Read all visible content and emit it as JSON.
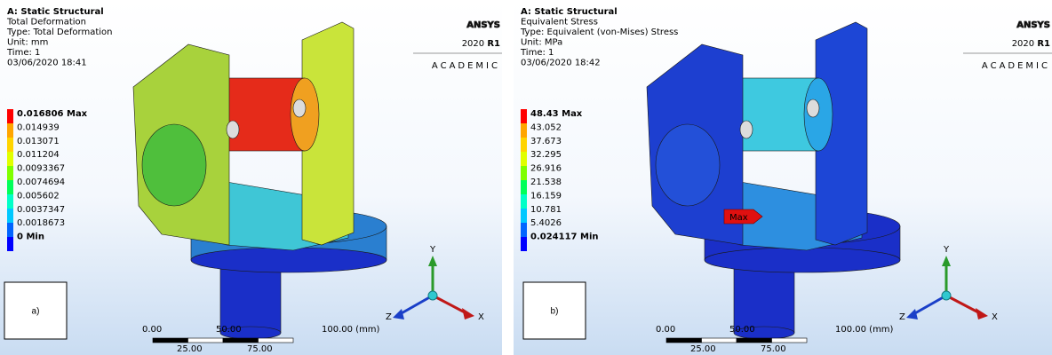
{
  "panels": [
    {
      "label": "a)",
      "header": {
        "analysis": "A: Static Structural",
        "result": "Total Deformation",
        "type": "Type: Total Deformation",
        "unit": "Unit: mm",
        "time": "Time: 1",
        "date": "03/06/2020 18:41"
      },
      "legend": [
        "0.016806 Max",
        "0.014939",
        "0.013071",
        "0.011204",
        "0.0093367",
        "0.0074694",
        "0.005602",
        "0.0037347",
        "0.0018673",
        "0 Min"
      ],
      "logo": {
        "brand": "ANSYS",
        "version": "2020",
        "release": "R1",
        "edition": "ACADEMIC"
      },
      "scale": {
        "top": [
          "0.00",
          "50.00",
          "100.00 (mm)"
        ],
        "bottom": [
          "25.00",
          "75.00"
        ]
      },
      "triad": {
        "y": "Y",
        "z": "Z",
        "x": "X"
      }
    },
    {
      "label": "b)",
      "header": {
        "analysis": "A: Static Structural",
        "result": "Equivalent Stress",
        "type": "Type: Equivalent (von-Mises) Stress",
        "unit": "Unit: MPa",
        "time": "Time: 1",
        "date": "03/06/2020 18:42"
      },
      "legend": [
        "48.43 Max",
        "43.052",
        "37.673",
        "32.295",
        "26.916",
        "21.538",
        "16.159",
        "10.781",
        "5.4026",
        "0.024117 Min"
      ],
      "logo": {
        "brand": "ANSYS",
        "version": "2020",
        "release": "R1",
        "edition": "ACADEMIC"
      },
      "scale": {
        "top": [
          "0.00",
          "50.00",
          "100.00 (mm)"
        ],
        "bottom": [
          "25.00",
          "75.00"
        ]
      },
      "triad": {
        "y": "Y",
        "z": "Z",
        "x": "X"
      },
      "max_marker": "Max"
    }
  ]
}
